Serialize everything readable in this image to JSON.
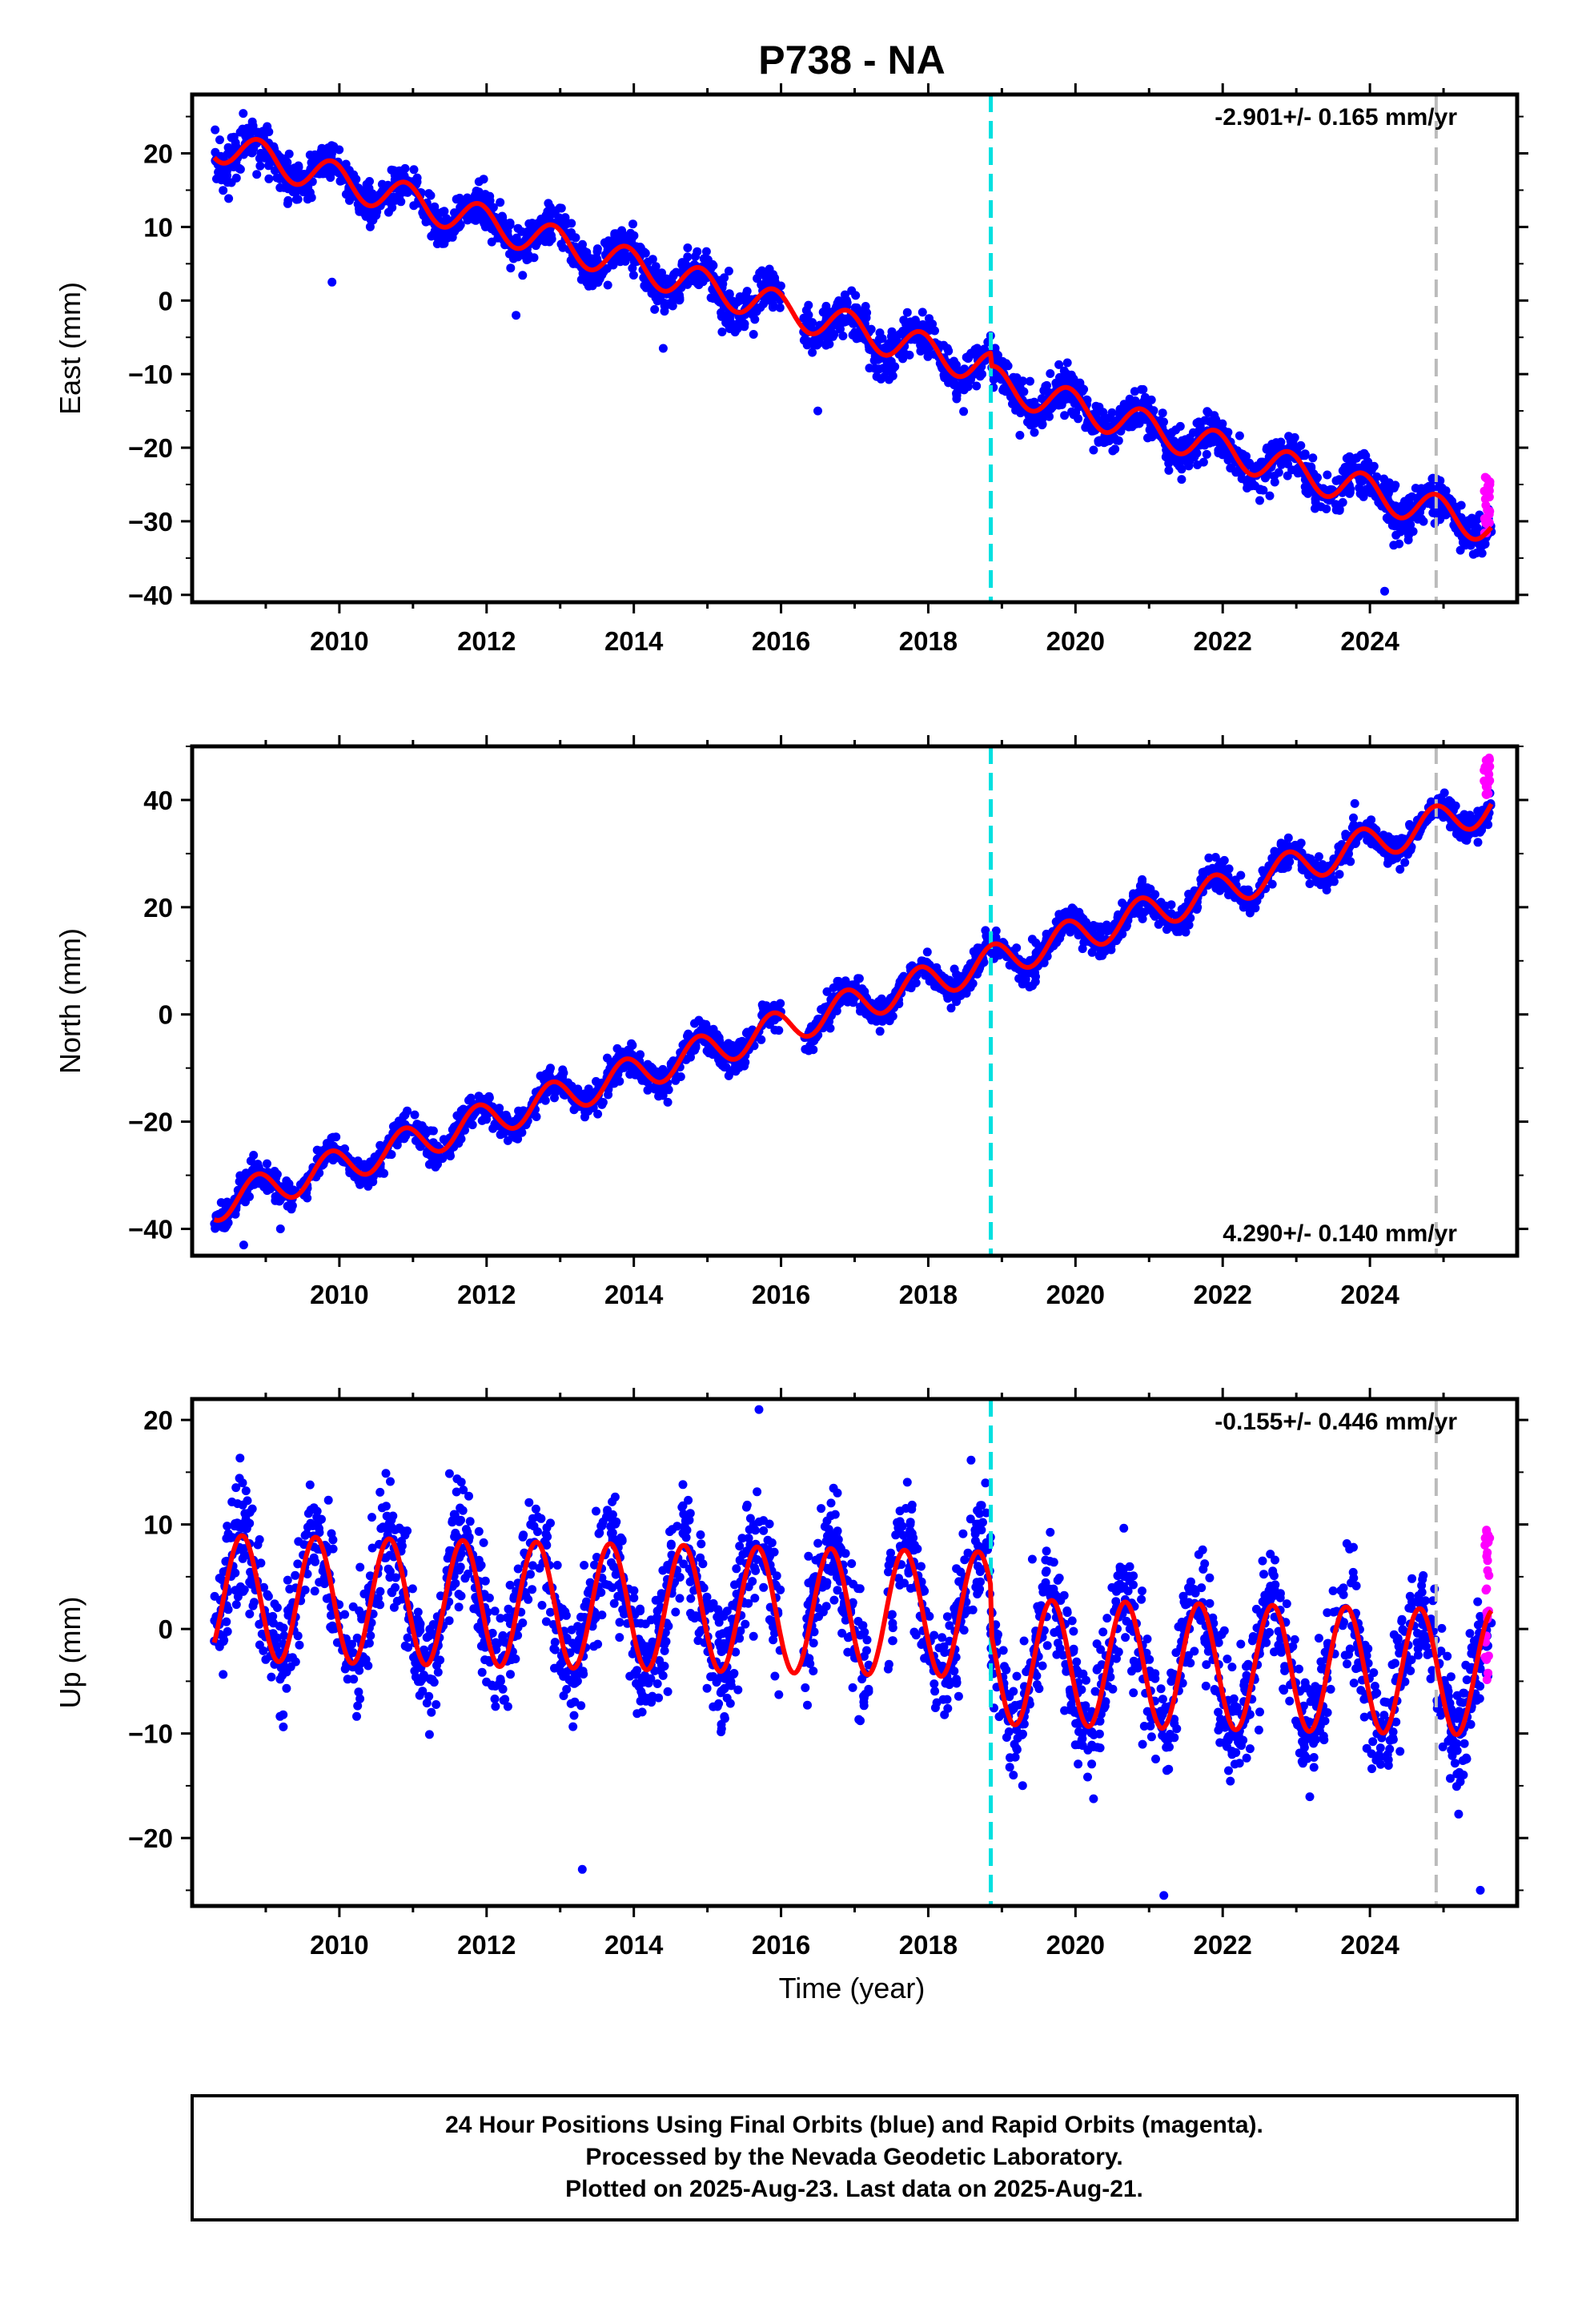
{
  "title": "P738 - NA",
  "colors": {
    "final_orbits": "#0000ff",
    "rapid_orbits": "#ff00ff",
    "model_fit": "#ff0000",
    "equipment_change": "#00e0e0",
    "gray_marker": "#bbbbbb"
  },
  "chart_data": [
    {
      "type": "scatter",
      "component": "east",
      "ylabel": "East (mm)",
      "xlabel": "",
      "xlim": [
        2008.0,
        2026.0
      ],
      "ylim": [
        -41,
        28
      ],
      "x_ticks": [
        "2010",
        "2012",
        "2014",
        "2016",
        "2018",
        "2020",
        "2022",
        "2024"
      ],
      "y_ticks": [
        "20",
        "10",
        "0",
        "-10",
        "-20",
        "-30",
        "-40"
      ],
      "rate_label": "-2.901+/- 0.165 mm/yr",
      "rate_position": "top-right",
      "model": {
        "start_year": 2008.3,
        "end_year": 2025.65,
        "intercept": 21.3,
        "rate": -2.901,
        "seasonal_amplitude": 2.3,
        "phase": 2.2,
        "offset_at_2018.85": -1.8
      },
      "vertical_lines": [
        {
          "x": 2018.85,
          "style": "dashed",
          "color": "cyan"
        },
        {
          "x": 2024.9,
          "style": "dashed",
          "color": "gray"
        }
      ],
      "scatter_spread": 2.6,
      "outliers": [
        [
          2009.9,
          2.5
        ],
        [
          2012.4,
          -2
        ],
        [
          2014.4,
          -6.5
        ],
        [
          2016.5,
          -15
        ],
        [
          2024.2,
          -39.5
        ]
      ],
      "rapid_points_range": [
        -32,
        -23
      ]
    },
    {
      "type": "scatter",
      "component": "north",
      "ylabel": "North (mm)",
      "xlabel": "",
      "xlim": [
        2008.0,
        2026.0
      ],
      "ylim": [
        -45,
        50
      ],
      "x_ticks": [
        "2010",
        "2012",
        "2014",
        "2016",
        "2018",
        "2020",
        "2022",
        "2024"
      ],
      "y_ticks": [
        "40",
        "20",
        "0",
        "-20",
        "-40"
      ],
      "rate_label": "4.290+/- 0.140 mm/yr",
      "rate_position": "bottom-right",
      "model": {
        "start_year": 2008.3,
        "end_year": 2025.65,
        "intercept": -35.5,
        "rate": 4.29,
        "seasonal_amplitude": 3.2,
        "phase": 2.3,
        "offset_at_2018.85": 0.0
      },
      "vertical_lines": [
        {
          "x": 2018.85,
          "style": "dashed",
          "color": "cyan"
        },
        {
          "x": 2024.9,
          "style": "dashed",
          "color": "gray"
        }
      ],
      "scatter_spread": 2.4,
      "outliers": [
        [
          2008.7,
          -43
        ],
        [
          2009.2,
          -40
        ]
      ],
      "rapid_points_range": [
        40,
        48
      ]
    },
    {
      "type": "scatter",
      "component": "up",
      "ylabel": "Up (mm)",
      "xlabel": "Time (year)",
      "xlim": [
        2008.0,
        2026.0
      ],
      "ylim": [
        -26.5,
        22
      ],
      "x_ticks": [
        "2010",
        "2012",
        "2014",
        "2016",
        "2018",
        "2020",
        "2022",
        "2024"
      ],
      "y_ticks": [
        "20",
        "10",
        "0",
        "-10",
        "-20"
      ],
      "rate_label": "-0.155+/- 0.446 mm/yr",
      "rate_position": "top-right",
      "model": {
        "start_year": 2008.3,
        "end_year": 2025.65,
        "intercept": 3.0,
        "rate": -0.155,
        "seasonal_amplitude": 6.0,
        "phase": 3.6,
        "offset_at_2018.85": -4.5
      },
      "vertical_lines": [
        {
          "x": 2018.85,
          "style": "dashed",
          "color": "cyan"
        },
        {
          "x": 2024.9,
          "style": "dashed",
          "color": "gray"
        }
      ],
      "scatter_spread": 5.0,
      "outliers": [
        [
          2013.3,
          -23
        ],
        [
          2015.7,
          21
        ],
        [
          2021.2,
          -25.5
        ],
        [
          2025.5,
          -25
        ]
      ],
      "rapid_points_range": [
        -5,
        10
      ]
    }
  ],
  "footer": {
    "line1": "24 Hour Positions Using Final Orbits (blue) and Rapid Orbits (magenta).",
    "line2": "Processed by the Nevada Geodetic Laboratory.",
    "line3": "Plotted on 2025-Aug-23. Last data on 2025-Aug-21."
  }
}
